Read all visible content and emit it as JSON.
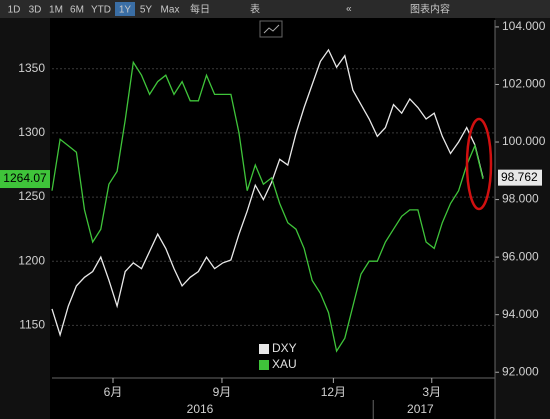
{
  "toolbar": {
    "ranges": [
      "1D",
      "3D",
      "1M",
      "6M",
      "YTD",
      "1Y",
      "5Y",
      "Max"
    ],
    "active_range_index": 5,
    "frequency": "每日",
    "table": "表",
    "content": "图表内容"
  },
  "chart_data": {
    "type": "line",
    "xlim": [
      0,
      53
    ],
    "xticks": [
      {
        "value": 7.5,
        "label": "6月"
      },
      {
        "value": 20.9,
        "label": "9月"
      },
      {
        "value": 34.6,
        "label": "12月"
      },
      {
        "value": 46.7,
        "label": "3月"
      }
    ],
    "x_group_labels": [
      {
        "value": 18.2,
        "label": "2016"
      },
      {
        "value": 45.3,
        "label": "2017"
      }
    ],
    "ylim": [
      1109,
      1388
    ],
    "yticks": [
      1150,
      1200,
      1250,
      1300,
      1350
    ],
    "y2lim": [
      91.8,
      104.24
    ],
    "y2ticks": [
      {
        "value": 92,
        "label": "92.000"
      },
      {
        "value": 94,
        "label": "94.000"
      },
      {
        "value": 96,
        "label": "96.000"
      },
      {
        "value": 98,
        "label": "98.000"
      },
      {
        "value": 100,
        "label": "100.000"
      },
      {
        "value": 102,
        "label": "102.000"
      },
      {
        "value": 104,
        "label": "104.000"
      }
    ],
    "grid": true,
    "series": [
      {
        "name": "DXY",
        "color": "#e8e8e8",
        "axis": "y2",
        "values": [
          94.2,
          93.3,
          94.3,
          95.0,
          95.3,
          95.5,
          96.0,
          95.2,
          94.3,
          95.5,
          95.8,
          95.6,
          96.2,
          96.8,
          96.3,
          95.6,
          95.0,
          95.3,
          95.5,
          96.0,
          95.6,
          95.8,
          95.9,
          96.8,
          97.6,
          98.5,
          98.0,
          98.6,
          99.4,
          99.2,
          100.3,
          101.2,
          102.0,
          102.8,
          103.2,
          102.6,
          103.0,
          101.8,
          101.3,
          100.8,
          100.2,
          100.5,
          101.3,
          101.0,
          101.5,
          101.2,
          100.8,
          101.0,
          100.2,
          99.6,
          100.0,
          100.5,
          99.9,
          98.762
        ]
      },
      {
        "name": "XAU",
        "color": "#3fc43a",
        "axis": "y",
        "values": [
          1255,
          1295,
          1290,
          1285,
          1240,
          1215,
          1225,
          1260,
          1270,
          1310,
          1355,
          1345,
          1330,
          1340,
          1345,
          1330,
          1340,
          1325,
          1325,
          1345,
          1330,
          1330,
          1330,
          1300,
          1255,
          1275,
          1260,
          1265,
          1245,
          1230,
          1225,
          1210,
          1185,
          1175,
          1160,
          1130,
          1140,
          1165,
          1190,
          1200,
          1200,
          1215,
          1225,
          1235,
          1240,
          1240,
          1215,
          1210,
          1230,
          1245,
          1255,
          1275,
          1290,
          1264.07
        ]
      }
    ]
  }
}
